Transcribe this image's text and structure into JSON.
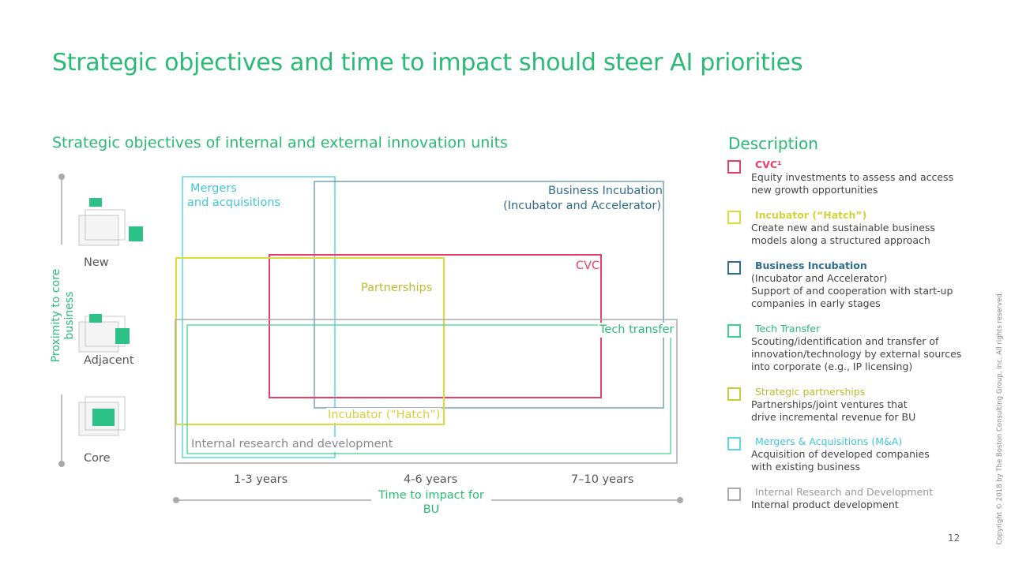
{
  "title": "Strategic objectives and time to impact should steer AI priorities",
  "left_heading": "Strategic objectives of internal and external innovation units",
  "right_heading": "Description",
  "y_axis": {
    "label_line1": "Proximity to core",
    "label_line2": "business",
    "levels": [
      "New",
      "Adjacent",
      "Core"
    ]
  },
  "x_axis": {
    "ticks": [
      "1-3 years",
      "4-6 years",
      "7–10 years"
    ],
    "label_line1": "Time to impact for",
    "label_line2": "BU"
  },
  "boxes": {
    "ma_line1": "Mergers",
    "ma_line2": "and acquisitions",
    "bi_line1": "Business Incubation",
    "bi_line2": "(Incubator and Accelerator)",
    "cvc": "CVC",
    "partnerships": "Partnerships",
    "tech": "Tech transfer",
    "hatch": "Incubator (“Hatch”)",
    "ird": "Internal research and development"
  },
  "colors": {
    "green": "#29ba74",
    "cvc": "#e83e67",
    "hatch": "#d9dc3a",
    "bi": "#2f6d8f",
    "tech": "#3dcf8e",
    "ma": "#5dd5e4",
    "ird": "#aaaaaa"
  },
  "descriptions": [
    {
      "title": "CVC¹",
      "lines": [
        "Equity investments to assess and access",
        "new growth opportunities"
      ]
    },
    {
      "title": "Incubator (“Hatch”)",
      "lines": [
        "Create new and sustainable business",
        "models along a structured approach"
      ]
    },
    {
      "title": "Business Incubation",
      "lines": [
        "(Incubator and Accelerator)",
        "Support of and cooperation with start-up",
        "companies in early stages"
      ]
    },
    {
      "title": "Tech Transfer",
      "lines": [
        "Scouting/identification and transfer of",
        "innovation/technology by external sources",
        "into corporate (e.g., IP licensing)"
      ]
    },
    {
      "title": "Strategic partnerships",
      "lines": [
        "Partnerships/joint ventures that",
        "drive incremental revenue for BU"
      ]
    },
    {
      "title": "Mergers & Acquisitions (M&A)",
      "lines": [
        "Acquisition of developed companies",
        "with existing business"
      ]
    },
    {
      "title": "Internal Research and Development",
      "lines": [
        "Internal product development"
      ]
    }
  ],
  "page_number": "12",
  "copyright": "Copyright © 2018 by The Boston Consulting Group, Inc. All rights reserved."
}
